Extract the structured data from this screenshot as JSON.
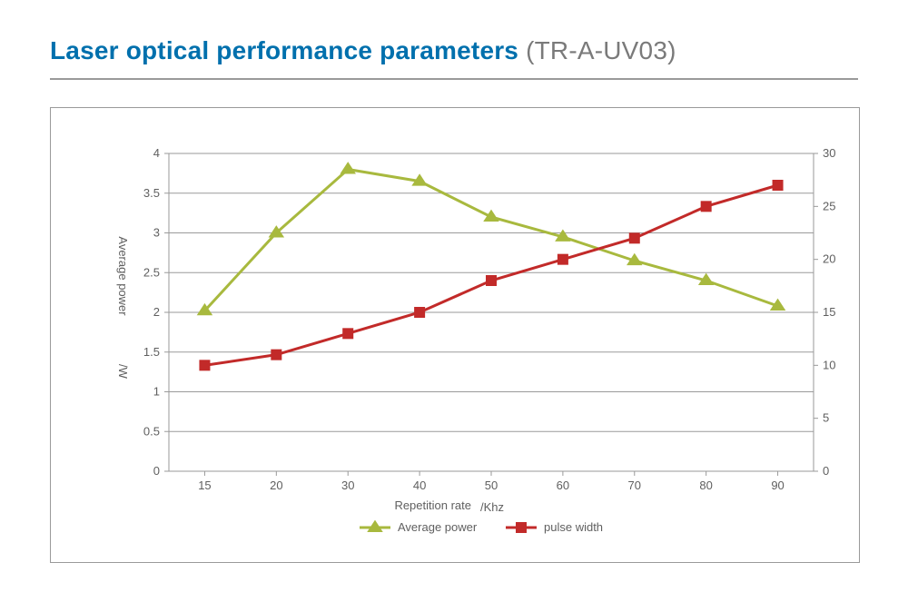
{
  "title_main": "Laser optical performance parameters",
  "title_sub": "(TR-A-UV03)",
  "chart": {
    "type": "dual-axis line",
    "background_color": "#ffffff",
    "border_color": "#9a9a9a",
    "plot_border_color": "#9a9a9a",
    "grid_color": "#9a9a9a",
    "x_categories": [
      "15",
      "20",
      "30",
      "40",
      "50",
      "60",
      "70",
      "80",
      "90"
    ],
    "x_label": "Repetition rate",
    "x_unit_label": "/Khz",
    "axis_fontsize": 13,
    "label_fontsize": 13,
    "left_axis": {
      "label_line1": "Average power",
      "label_line2": "/W",
      "min": 0,
      "max": 4,
      "step": 0.5,
      "ticks": [
        "0",
        "0.5",
        "1",
        "1.5",
        "2",
        "2.5",
        "3",
        "3.5",
        "4"
      ]
    },
    "right_axis": {
      "min": 0,
      "max": 30,
      "step": 5,
      "ticks": [
        "0",
        "5",
        "10",
        "15",
        "20",
        "25",
        "30"
      ]
    },
    "series": [
      {
        "name": "Average power",
        "color": "#a8b93e",
        "marker": "triangle",
        "marker_size": 14,
        "line_width": 3,
        "axis": "left",
        "values": [
          2.02,
          3.0,
          3.8,
          3.65,
          3.2,
          2.95,
          2.65,
          2.4,
          2.08
        ]
      },
      {
        "name": "pulse width",
        "color": "#c22a29",
        "marker": "square",
        "marker_size": 12,
        "line_width": 3,
        "axis": "right",
        "values": [
          10.0,
          11.0,
          13.0,
          15.0,
          18.0,
          20.0,
          22.0,
          25.0,
          27.0
        ]
      }
    ],
    "legend": {
      "position": "bottom-center",
      "items": [
        "Average power",
        "pulse width"
      ]
    }
  }
}
